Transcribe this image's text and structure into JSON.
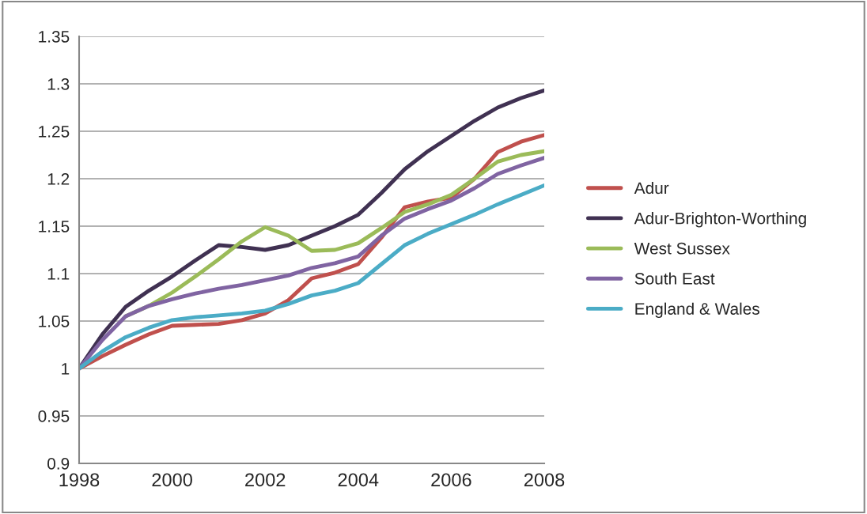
{
  "chart_data": {
    "type": "line",
    "x": [
      1998,
      1998.5,
      1999,
      1999.5,
      2000,
      2000.5,
      2001,
      2001.5,
      2002,
      2002.5,
      2003,
      2003.5,
      2004,
      2004.5,
      2005,
      2005.5,
      2006,
      2006.5,
      2007,
      2007.5,
      2008
    ],
    "series": [
      {
        "name": "Adur",
        "color": "#c0504d",
        "values": [
          1,
          1.013,
          1.025,
          1.036,
          1.045,
          1.046,
          1.047,
          1.051,
          1.058,
          1.072,
          1.095,
          1.101,
          1.11,
          1.138,
          1.17,
          1.176,
          1.18,
          1.2,
          1.228,
          1.239,
          1.246
        ]
      },
      {
        "name": "Adur-Brighton-Worthing",
        "color": "#403152",
        "values": [
          1,
          1.036,
          1.065,
          1.082,
          1.097,
          1.114,
          1.13,
          1.128,
          1.125,
          1.13,
          1.14,
          1.15,
          1.162,
          1.185,
          1.21,
          1.229,
          1.245,
          1.261,
          1.275,
          1.285,
          1.293
        ]
      },
      {
        "name": "West Sussex",
        "color": "#9bbb59",
        "values": [
          null,
          null,
          1.055,
          1.066,
          1.08,
          1.097,
          1.115,
          1.134,
          1.149,
          1.14,
          1.124,
          1.125,
          1.132,
          1.148,
          1.165,
          1.173,
          1.183,
          1.2,
          1.218,
          1.225,
          1.229
        ]
      },
      {
        "name": "South East",
        "color": "#8064a2",
        "values": [
          1,
          1.03,
          1.055,
          1.066,
          1.073,
          1.079,
          1.084,
          1.088,
          1.093,
          1.098,
          1.106,
          1.111,
          1.118,
          1.14,
          1.158,
          1.168,
          1.177,
          1.19,
          1.205,
          1.214,
          1.222
        ]
      },
      {
        "name": "England & Wales",
        "color": "#4bacc6",
        "values": [
          1,
          1.018,
          1.033,
          1.043,
          1.051,
          1.054,
          1.056,
          1.058,
          1.061,
          1.068,
          1.077,
          1.082,
          1.09,
          1.11,
          1.13,
          1.142,
          1.152,
          1.162,
          1.173,
          1.183,
          1.193
        ]
      }
    ],
    "xlim": [
      1998,
      2008
    ],
    "xticks": [
      1998,
      2000,
      2002,
      2004,
      2006,
      2008
    ],
    "ylim": [
      0.9,
      1.35
    ],
    "yticks": [
      0.9,
      0.95,
      1,
      1.05,
      1.1,
      1.15,
      1.2,
      1.25,
      1.3,
      1.35
    ],
    "grid": "y",
    "legend": "right",
    "marker": "none",
    "line_style": "solid"
  }
}
